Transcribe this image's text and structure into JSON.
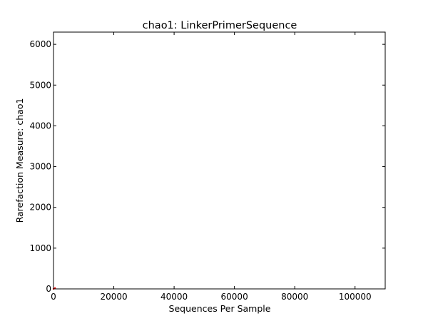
{
  "chart_data": {
    "type": "line",
    "title": "chao1: LinkerPrimerSequence",
    "xlabel": "Sequences Per Sample",
    "ylabel": "Rarefaction Measure: chao1",
    "xlim": [
      0,
      110000
    ],
    "ylim": [
      0,
      6300
    ],
    "xticks": [
      0,
      20000,
      40000,
      60000,
      80000,
      100000
    ],
    "yticks": [
      0,
      1000,
      2000,
      3000,
      4000,
      5000,
      6000
    ],
    "grid": false,
    "series": [
      {
        "color": "#ff0000",
        "x": [
          0,
          500
        ],
        "y": [
          0,
          20
        ]
      }
    ]
  }
}
